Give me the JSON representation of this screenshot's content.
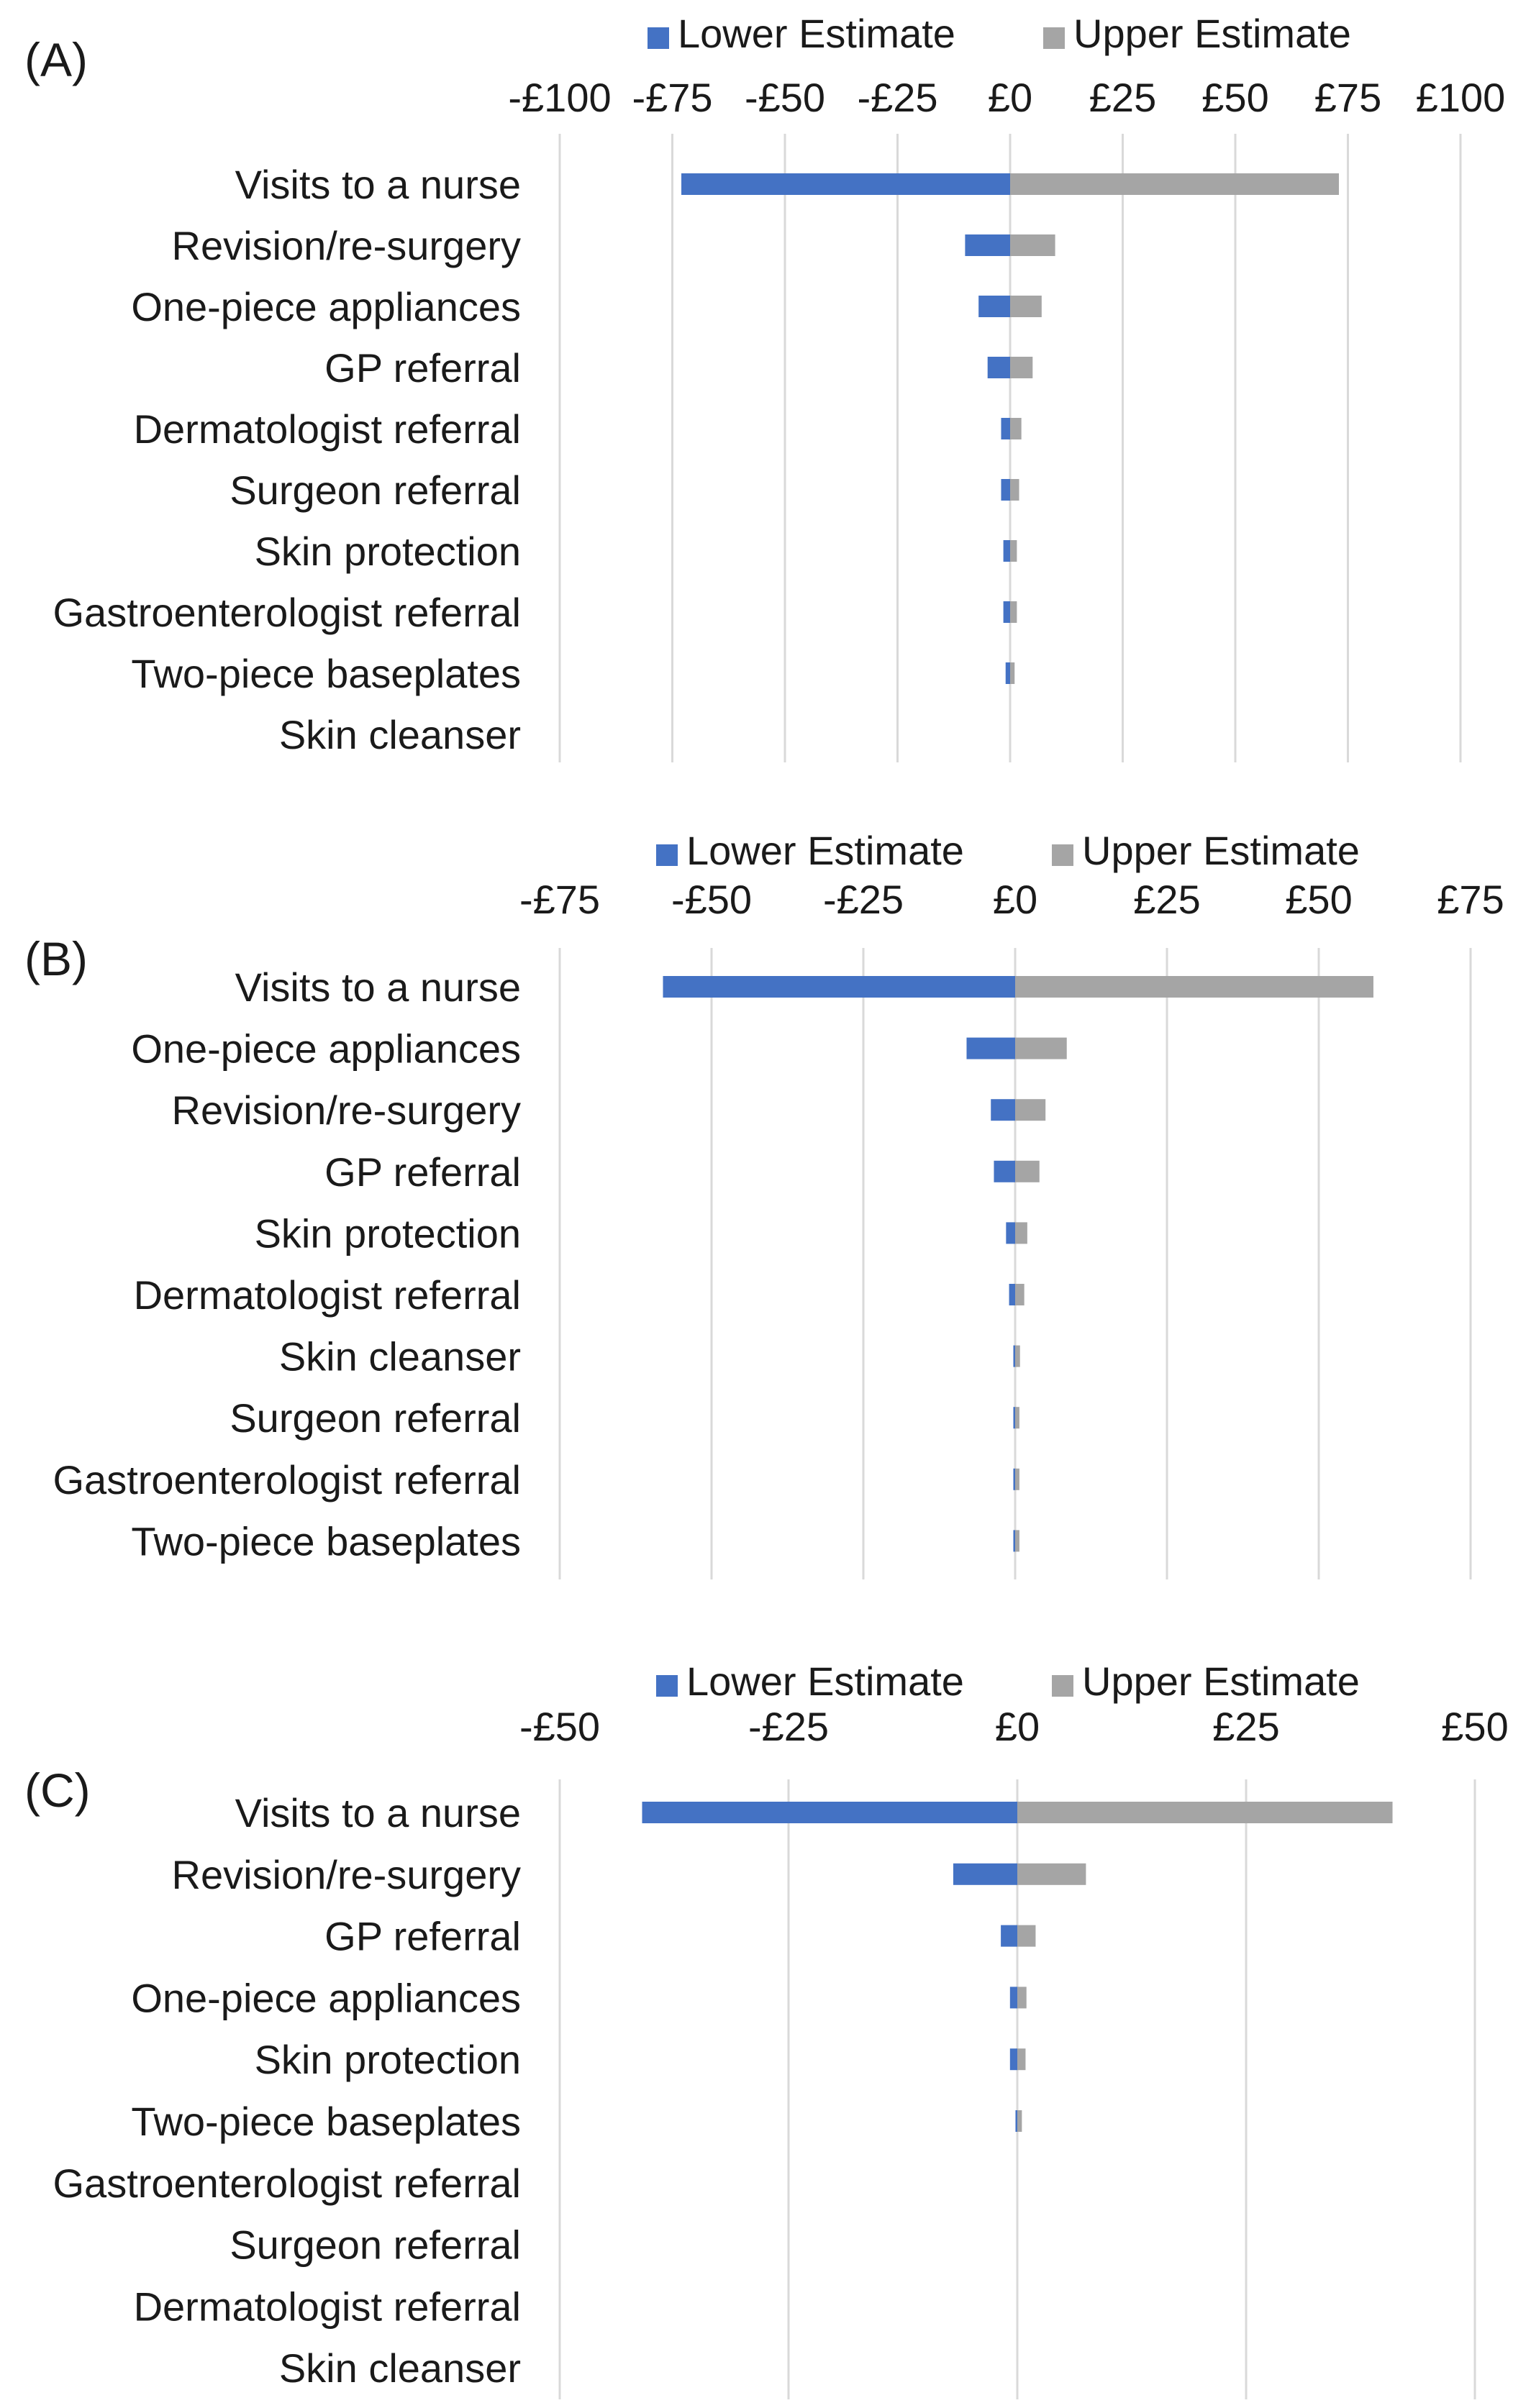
{
  "colors": {
    "lower": "#4472C4",
    "upper": "#A5A5A5",
    "grid": "#D9D9D9",
    "text": "#1a1a1a"
  },
  "chart_data": [
    {
      "type": "bar",
      "orientation": "horizontal",
      "panel_label": "(A)",
      "legend": [
        "Lower Estimate",
        "Upper Estimate"
      ],
      "legend_position": "top",
      "x_ticks": [
        "-£100",
        "-£75",
        "-£50",
        "-£25",
        "£0",
        "£25",
        "£50",
        "£75",
        "£100"
      ],
      "x_tick_values": [
        -100,
        -75,
        -50,
        -25,
        0,
        25,
        50,
        75,
        100
      ],
      "xlim": [
        -100,
        100
      ],
      "grid": true,
      "categories": [
        "Visits to a nurse",
        "Revision/re-surgery",
        "One-piece appliances",
        "GP referral",
        "Dermatologist referral",
        "Surgeon referral",
        "Skin protection",
        "Gastroenterologist referral",
        "Two-piece baseplates",
        "Skin cleanser"
      ],
      "series": [
        {
          "name": "Lower Estimate",
          "values": [
            -73,
            -10,
            -7,
            -5,
            -2,
            -2,
            -1.5,
            -1.5,
            -1,
            0
          ]
        },
        {
          "name": "Upper Estimate",
          "values": [
            73,
            10,
            7,
            5,
            2.5,
            2,
            1.5,
            1.5,
            1,
            0
          ]
        }
      ]
    },
    {
      "type": "bar",
      "orientation": "horizontal",
      "panel_label": "(B)",
      "legend": [
        "Lower Estimate",
        "Upper Estimate"
      ],
      "legend_position": "top",
      "x_ticks": [
        "-£75",
        "-£50",
        "-£25",
        "£0",
        "£25",
        "£50",
        "£75"
      ],
      "x_tick_values": [
        -75,
        -50,
        -25,
        0,
        25,
        50,
        75
      ],
      "xlim": [
        -75,
        75
      ],
      "grid": true,
      "categories": [
        "Visits to a nurse",
        "One-piece appliances",
        "Revision/re-surgery",
        "GP referral",
        "Skin protection",
        "Dermatologist referral",
        "Skin cleanser",
        "Surgeon referral",
        "Gastroenterologist referral",
        "Two-piece baseplates"
      ],
      "series": [
        {
          "name": "Lower Estimate",
          "values": [
            -58,
            -8,
            -4,
            -3.5,
            -1.5,
            -1,
            -0.3,
            -0.3,
            -0.3,
            -0.3
          ]
        },
        {
          "name": "Upper Estimate",
          "values": [
            59,
            8.5,
            5,
            4,
            2,
            1.5,
            0.8,
            0.7,
            0.7,
            0.7
          ]
        }
      ]
    },
    {
      "type": "bar",
      "orientation": "horizontal",
      "panel_label": "(C)",
      "legend": [
        "Lower Estimate",
        "Upper Estimate"
      ],
      "legend_position": "top",
      "x_ticks": [
        "-£50",
        "-£25",
        "£0",
        "£25",
        "£50"
      ],
      "x_tick_values": [
        -50,
        -25,
        0,
        25,
        50
      ],
      "xlim": [
        -50,
        50
      ],
      "grid": true,
      "categories": [
        "Visits to a nurse",
        "Revision/re-surgery",
        "GP referral",
        "One-piece appliances",
        "Skin protection",
        "Two-piece baseplates",
        "Gastroenterologist referral",
        "Surgeon referral",
        "Dermatologist referral",
        "Skin cleanser"
      ],
      "series": [
        {
          "name": "Lower Estimate",
          "values": [
            -41,
            -7,
            -1.8,
            -0.8,
            -0.8,
            -0.2,
            0,
            0,
            0,
            0
          ]
        },
        {
          "name": "Upper Estimate",
          "values": [
            41,
            7.5,
            2,
            1,
            0.9,
            0.5,
            0,
            0,
            0,
            0
          ]
        }
      ]
    }
  ]
}
